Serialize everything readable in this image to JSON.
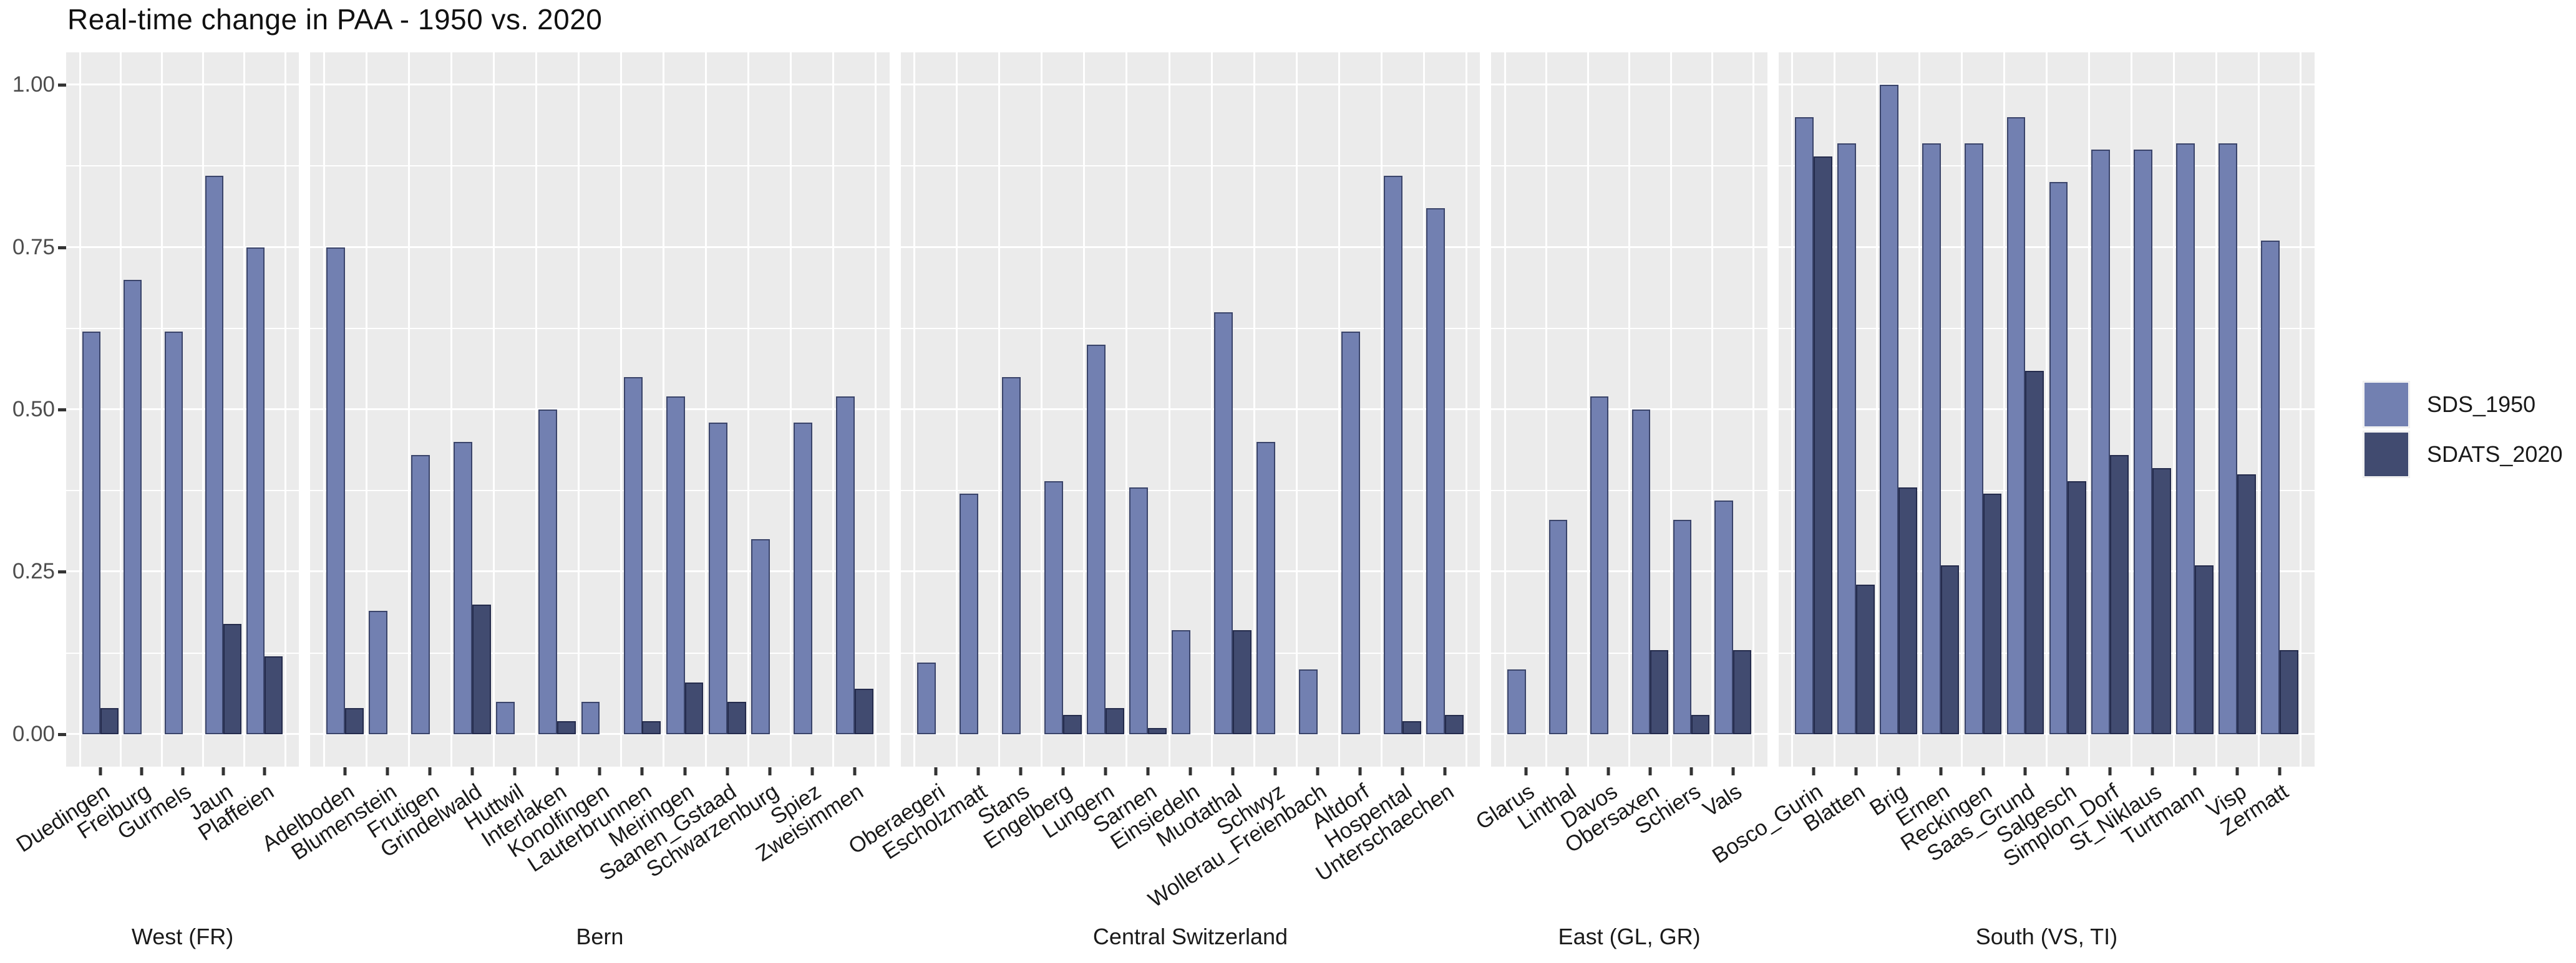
{
  "title": "Real-time change in PAA - 1950 vs. 2020",
  "colors": {
    "sds_1950": "#7280B1",
    "sdats_2020": "#414B70",
    "panel_background": "#EBEBEB",
    "gridline": "#FFFFFF",
    "axis_text": "#4D4D4D",
    "tick_mark": "#333333"
  },
  "legend": {
    "position": "right",
    "items": [
      {
        "label": "SDS_1950",
        "color": "#7280B1"
      },
      {
        "label": "SDATS_2020",
        "color": "#414B70"
      }
    ]
  },
  "y_axis": {
    "ticks": [
      {
        "label": "0.00",
        "value": 0.0
      },
      {
        "label": "0.25",
        "value": 0.25
      },
      {
        "label": "0.50",
        "value": 0.5
      },
      {
        "label": "0.75",
        "value": 0.75
      },
      {
        "label": "1.00",
        "value": 1.0
      }
    ]
  },
  "chart_data": {
    "type": "bar",
    "title": "Real-time change in PAA - 1950 vs. 2020",
    "xlabel": "",
    "ylabel": "",
    "ylim": [
      0,
      1
    ],
    "grid": true,
    "legend_position": "right",
    "series_names": [
      "SDS_1950",
      "SDATS_2020"
    ],
    "major_gridlines": [
      0,
      0.25,
      0.5,
      0.75,
      1.0
    ],
    "minor_gridlines": [
      0.125,
      0.375,
      0.625,
      0.875
    ],
    "panels": [
      {
        "facet": "West (FR)",
        "categories": [
          "Duedingen",
          "Freiburg",
          "Gurmels",
          "Jaun",
          "Plaffeien"
        ],
        "SDS_1950": [
          0.62,
          0.7,
          0.62,
          0.86,
          0.75
        ],
        "SDATS_2020": [
          0.04,
          0,
          0,
          0.17,
          0.12
        ]
      },
      {
        "facet": "Bern",
        "categories": [
          "Adelboden",
          "Blumenstein",
          "Frutigen",
          "Grindelwald",
          "Huttwil",
          "Interlaken",
          "Konolfingen",
          "Lauterbrunnen",
          "Meiringen",
          "Saanen_Gstaad",
          "Schwarzenburg",
          "Spiez",
          "Zweisimmen"
        ],
        "SDS_1950": [
          0.75,
          0.19,
          0.43,
          0.45,
          0.05,
          0.5,
          0.05,
          0.55,
          0.52,
          0.48,
          0.3,
          0.48,
          0.52
        ],
        "SDATS_2020": [
          0.04,
          0,
          0,
          0.2,
          0,
          0.02,
          0,
          0.02,
          0.08,
          0.05,
          0,
          0,
          0.07
        ]
      },
      {
        "facet": "Central Switzerland",
        "categories": [
          "Oberaegeri",
          "Escholzmatt",
          "Stans",
          "Engelberg",
          "Lungern",
          "Sarnen",
          "Einsiedeln",
          "Muotathal",
          "Schwyz",
          "Wollerau_Freienbach",
          "Altdorf",
          "Hospental",
          "Unterschaechen"
        ],
        "SDS_1950": [
          0.11,
          0.37,
          0.55,
          0.39,
          0.6,
          0.38,
          0.16,
          0.65,
          0.45,
          0.1,
          0.62,
          0.86,
          0.81
        ],
        "SDATS_2020": [
          0,
          0,
          0,
          0.03,
          0.04,
          0.01,
          0,
          0.16,
          0,
          0,
          0,
          0.02,
          0.03
        ]
      },
      {
        "facet": "East (GL, GR)",
        "categories": [
          "Glarus",
          "Linthal",
          "Davos",
          "Obersaxen",
          "Schiers",
          "Vals"
        ],
        "SDS_1950": [
          0.1,
          0.33,
          0.52,
          0.5,
          0.33,
          0.36
        ],
        "SDATS_2020": [
          0,
          0,
          0,
          0.13,
          0.03,
          0.13
        ]
      },
      {
        "facet": "South (VS, TI)",
        "categories": [
          "Bosco_Gurin",
          "Blatten",
          "Brig",
          "Ernen",
          "Reckingen",
          "Saas_Grund",
          "Salgesch",
          "Simplon_Dorf",
          "St_Niklaus",
          "Turtmann",
          "Visp",
          "Zermatt"
        ],
        "SDS_1950": [
          0.95,
          0.91,
          1.0,
          0.91,
          0.91,
          0.95,
          0.85,
          0.9,
          0.9,
          0.91,
          0.91,
          0.76
        ],
        "SDATS_2020": [
          0.89,
          0.23,
          0.38,
          0.26,
          0.37,
          0.56,
          0.39,
          0.43,
          0.41,
          0.26,
          0.4,
          0.13
        ]
      }
    ]
  }
}
